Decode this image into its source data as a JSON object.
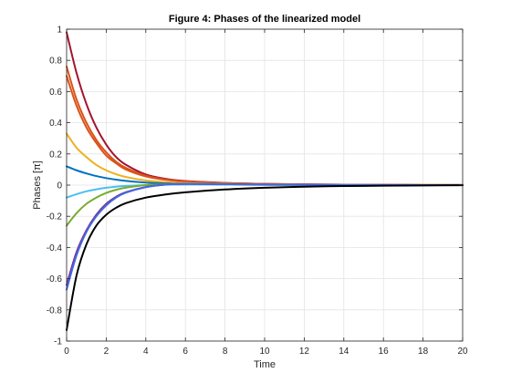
{
  "chart_data": {
    "type": "line",
    "title": "Figure 4: Phases of the linearized model",
    "xlabel": "Time",
    "ylabel": "Phases [π]",
    "xlim": [
      0,
      20
    ],
    "ylim": [
      -1,
      1
    ],
    "xticks": [
      0,
      2,
      4,
      6,
      8,
      10,
      12,
      14,
      16,
      18,
      20
    ],
    "yticks": [
      -1,
      -0.8,
      -0.6,
      -0.4,
      -0.2,
      0,
      0.2,
      0.4,
      0.6,
      0.8,
      1
    ],
    "xtick_labels": [
      "0",
      "2",
      "4",
      "6",
      "8",
      "10",
      "12",
      "14",
      "16",
      "18",
      "20"
    ],
    "ytick_labels": [
      "-1",
      "-0.8",
      "-0.6",
      "-0.4",
      "-0.2",
      "0",
      "0.2",
      "0.4",
      "0.6",
      "0.8",
      "1"
    ],
    "grid": true,
    "x": [
      0,
      0.5,
      1,
      1.5,
      2,
      2.5,
      3,
      4,
      5,
      6,
      8,
      10,
      12,
      14,
      16,
      18,
      20
    ],
    "series": [
      {
        "color": "#A2142F",
        "values": [
          0.98,
          0.72,
          0.52,
          0.37,
          0.26,
          0.18,
          0.13,
          0.068,
          0.04,
          0.026,
          0.014,
          0.008,
          0.005,
          0.003,
          0.002,
          0.001,
          0.001
        ]
      },
      {
        "color": "#D95319",
        "values": [
          0.76,
          0.55,
          0.4,
          0.29,
          0.21,
          0.15,
          0.11,
          0.06,
          0.036,
          0.024,
          0.013,
          0.008,
          0.005,
          0.003,
          0.002,
          0.001,
          0.001
        ]
      },
      {
        "color": "#D95319",
        "values": [
          0.7,
          0.51,
          0.37,
          0.27,
          0.19,
          0.14,
          0.1,
          0.056,
          0.034,
          0.023,
          0.012,
          0.007,
          0.004,
          0.003,
          0.002,
          0.001,
          0.001
        ]
      },
      {
        "color": "#EDB120",
        "values": [
          0.33,
          0.24,
          0.18,
          0.13,
          0.095,
          0.07,
          0.052,
          0.03,
          0.019,
          0.013,
          0.007,
          0.004,
          0.003,
          0.002,
          0.001,
          0.001,
          0.0
        ]
      },
      {
        "color": "#0072BD",
        "values": [
          0.12,
          0.095,
          0.075,
          0.058,
          0.045,
          0.035,
          0.027,
          0.016,
          0.01,
          0.007,
          0.004,
          0.002,
          0.001,
          0.001,
          0.0,
          0.0,
          0.0
        ]
      },
      {
        "color": "#4DBEEE",
        "values": [
          -0.08,
          -0.058,
          -0.04,
          -0.027,
          -0.017,
          -0.01,
          -0.005,
          0.0,
          0.003,
          0.004,
          0.003,
          0.002,
          0.001,
          0.001,
          0.0,
          0.0,
          0.0
        ]
      },
      {
        "color": "#77AC30",
        "values": [
          -0.26,
          -0.18,
          -0.12,
          -0.08,
          -0.05,
          -0.03,
          -0.016,
          0.0,
          0.006,
          0.007,
          0.005,
          0.003,
          0.002,
          0.001,
          0.001,
          0.0,
          0.0
        ]
      },
      {
        "color": "#7E2F8E",
        "values": [
          -0.64,
          -0.43,
          -0.29,
          -0.19,
          -0.12,
          -0.075,
          -0.045,
          -0.012,
          0.004,
          0.008,
          0.006,
          0.004,
          0.002,
          0.001,
          0.001,
          0.0,
          0.0
        ]
      },
      {
        "color": "#4169E1",
        "values": [
          -0.67,
          -0.45,
          -0.3,
          -0.2,
          -0.13,
          -0.08,
          -0.048,
          -0.013,
          0.003,
          0.008,
          0.006,
          0.004,
          0.002,
          0.001,
          0.001,
          0.0,
          0.0
        ]
      },
      {
        "color": "#000000",
        "values": [
          -0.93,
          -0.58,
          -0.38,
          -0.26,
          -0.19,
          -0.145,
          -0.115,
          -0.08,
          -0.06,
          -0.046,
          -0.028,
          -0.017,
          -0.01,
          -0.006,
          -0.004,
          -0.002,
          -0.001
        ]
      }
    ]
  }
}
